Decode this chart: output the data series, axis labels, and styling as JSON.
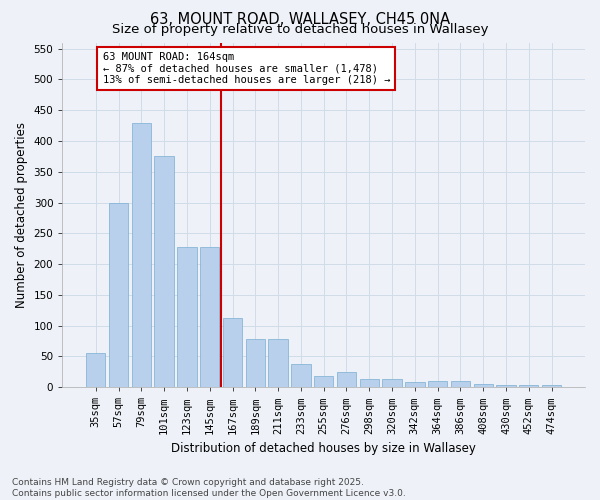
{
  "title_line1": "63, MOUNT ROAD, WALLASEY, CH45 0NA",
  "title_line2": "Size of property relative to detached houses in Wallasey",
  "xlabel": "Distribution of detached houses by size in Wallasey",
  "ylabel": "Number of detached properties",
  "categories": [
    "35sqm",
    "57sqm",
    "79sqm",
    "101sqm",
    "123sqm",
    "145sqm",
    "167sqm",
    "189sqm",
    "211sqm",
    "233sqm",
    "255sqm",
    "276sqm",
    "298sqm",
    "320sqm",
    "342sqm",
    "364sqm",
    "386sqm",
    "408sqm",
    "430sqm",
    "452sqm",
    "474sqm"
  ],
  "values": [
    55,
    300,
    430,
    375,
    228,
    228,
    113,
    78,
    78,
    38,
    18,
    25,
    13,
    13,
    8,
    10,
    10,
    5,
    3,
    3,
    3
  ],
  "bar_color": "#b8d0eb",
  "bar_edge_color": "#7aafd4",
  "grid_color": "#d0dce8",
  "background_color": "#eef2f8",
  "vline_color": "#cc0000",
  "annotation_text": "63 MOUNT ROAD: 164sqm\n← 87% of detached houses are smaller (1,478)\n13% of semi-detached houses are larger (218) →",
  "annotation_box_color": "#cc0000",
  "annotation_bg": "#ffffff",
  "ylim": [
    0,
    560
  ],
  "yticks": [
    0,
    50,
    100,
    150,
    200,
    250,
    300,
    350,
    400,
    450,
    500,
    550
  ],
  "footer_text": "Contains HM Land Registry data © Crown copyright and database right 2025.\nContains public sector information licensed under the Open Government Licence v3.0.",
  "title_fontsize": 10.5,
  "subtitle_fontsize": 9.5,
  "axis_label_fontsize": 8.5,
  "tick_fontsize": 7.5,
  "annotation_fontsize": 7.5,
  "footer_fontsize": 6.5
}
